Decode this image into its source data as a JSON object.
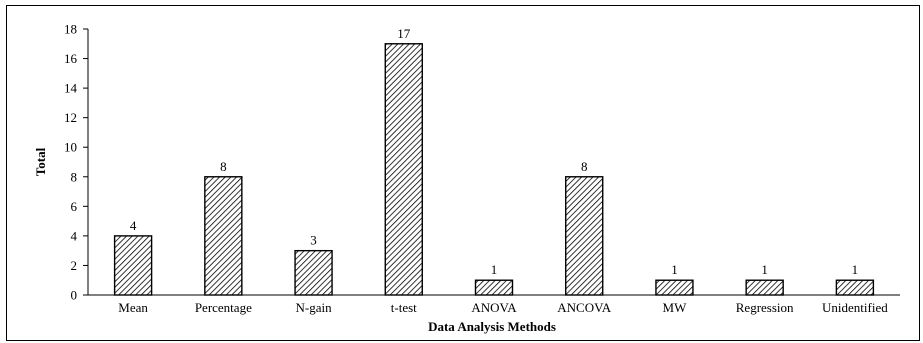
{
  "chart_data": {
    "type": "bar",
    "title": "",
    "xlabel": "Data Analysis Methods",
    "ylabel": "Total",
    "categories": [
      "Mean",
      "Percentage",
      "N-gain",
      "t-test",
      "ANOVA",
      "ANCOVA",
      "MW",
      "Regression",
      "Unidentified"
    ],
    "values": [
      4,
      8,
      3,
      17,
      1,
      8,
      1,
      1,
      1
    ],
    "data_labels": [
      "4",
      "8",
      "3",
      "17",
      "1",
      "8",
      "1",
      "1",
      "1"
    ],
    "yticks": [
      0,
      2,
      4,
      6,
      8,
      10,
      12,
      14,
      16,
      18
    ],
    "ylim": [
      0,
      18
    ],
    "grid": false,
    "legend": "none",
    "bar_fill": "hatched",
    "bar_color": "#000000"
  }
}
